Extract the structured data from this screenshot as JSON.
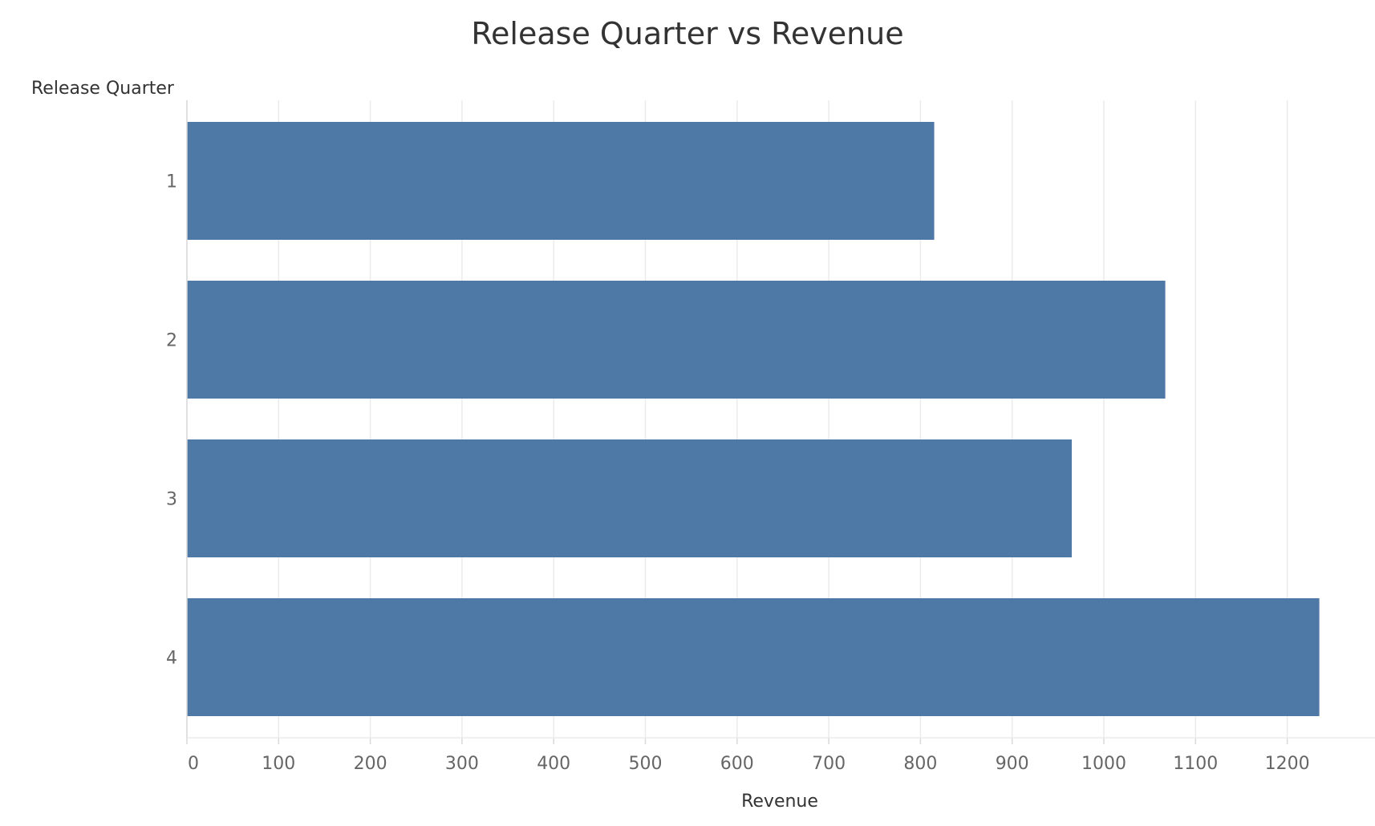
{
  "chart_data": {
    "type": "bar",
    "orientation": "horizontal",
    "title": "Release Quarter vs Revenue",
    "xlabel": "Revenue",
    "ylabel": "Release Quarter",
    "categories": [
      "1",
      "2",
      "3",
      "4"
    ],
    "values": [
      815,
      1067,
      965,
      1235
    ],
    "xlim": [
      0,
      1290
    ],
    "xticks": [
      0,
      100,
      200,
      300,
      400,
      500,
      600,
      700,
      800,
      900,
      1000,
      1100,
      1200
    ],
    "grid": true,
    "legend": "none",
    "bar_color": "#4e79a7",
    "grid_color": "#ebebeb",
    "text_color": "#333333",
    "tick_color": "#666666"
  }
}
